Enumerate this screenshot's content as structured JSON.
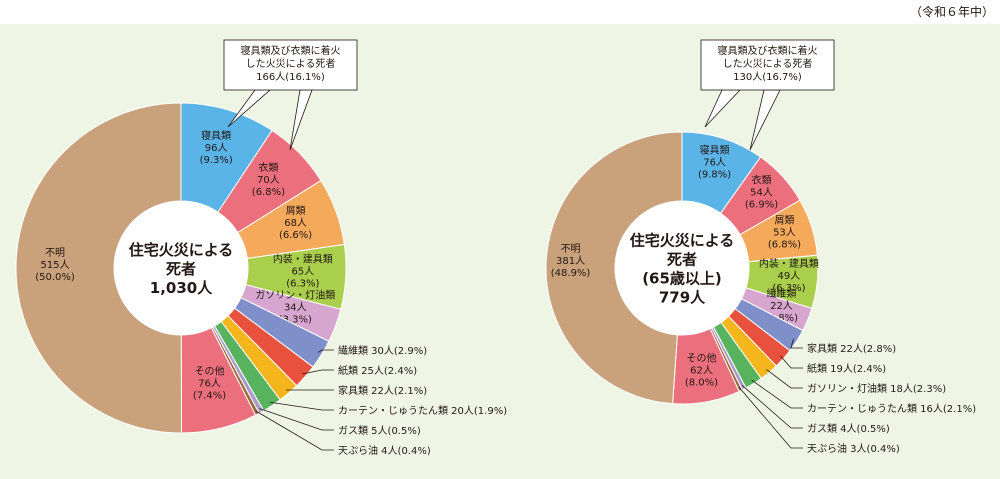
{
  "header": {
    "note": "（令和６年中）"
  },
  "colors": {
    "bedding": "#5bb4e8",
    "clothing": "#ec6f7e",
    "waste": "#f5a95b",
    "interior": "#a9cf4d",
    "gasoline": "#d7a6d0",
    "fiber": "#7f8fca",
    "paper": "#e8513d",
    "furniture": "#f4b51d",
    "curtain": "#58b35e",
    "gas": "#ab9bcc",
    "tempura": "#9c6b3c",
    "other": "#ec6f7e",
    "unknown": "#c9a27c",
    "background": "#eff5e4"
  },
  "chart_data": [
    {
      "type": "pie",
      "center_label": [
        "住宅火災による",
        "死者",
        "1,030人"
      ],
      "callout": [
        "寝具類及び衣類に着火",
        "した火災による死者",
        "166人(16.1%)"
      ],
      "slices": [
        {
          "key": "bedding",
          "color_key": "bedding",
          "name": "寝具類",
          "count": "96人",
          "pct": "(9.3%)",
          "value": 9.3,
          "label_pos": "inside"
        },
        {
          "key": "clothing",
          "color_key": "clothing",
          "name": "衣類",
          "count": "70人",
          "pct": "(6.8%)",
          "value": 6.8,
          "label_pos": "inside"
        },
        {
          "key": "waste",
          "color_key": "waste",
          "name": "屑類",
          "count": "68人",
          "pct": "(6.6%)",
          "value": 6.6,
          "label_pos": "inside"
        },
        {
          "key": "interior",
          "color_key": "interior",
          "name": "内装・建具類",
          "count": "65人",
          "pct": "(6.3%)",
          "value": 6.3,
          "label_pos": "inside"
        },
        {
          "key": "gasoline",
          "color_key": "gasoline",
          "name": "ガソリン・灯油類",
          "count": "34人",
          "pct": "(3.3%)",
          "value": 3.3,
          "label_pos": "inside"
        },
        {
          "key": "fiber",
          "color_key": "fiber",
          "name": "繊維類",
          "count": "30人",
          "pct": "(2.9%)",
          "value": 2.9,
          "label_pos": "outside"
        },
        {
          "key": "paper",
          "color_key": "paper",
          "name": "紙類",
          "count": "25人",
          "pct": "(2.4%)",
          "value": 2.4,
          "label_pos": "outside"
        },
        {
          "key": "furniture",
          "color_key": "furniture",
          "name": "家具類",
          "count": "22人",
          "pct": "(2.1%)",
          "value": 2.1,
          "label_pos": "outside"
        },
        {
          "key": "curtain",
          "color_key": "curtain",
          "name": "カーテン・じゅうたん類",
          "count": "20人",
          "pct": "(1.9%)",
          "value": 1.9,
          "label_pos": "outside"
        },
        {
          "key": "gas",
          "color_key": "gas",
          "name": "ガス類",
          "count": "5人",
          "pct": "(0.5%)",
          "value": 0.5,
          "label_pos": "outside"
        },
        {
          "key": "tempura",
          "color_key": "tempura",
          "name": "天ぷら油",
          "count": "4人",
          "pct": "(0.4%)",
          "value": 0.4,
          "label_pos": "outside"
        },
        {
          "key": "other",
          "color_key": "other",
          "name": "その他",
          "count": "76人",
          "pct": "(7.4%)",
          "value": 7.4,
          "label_pos": "inside"
        },
        {
          "key": "unknown",
          "color_key": "unknown",
          "name": "不明",
          "count": "515人",
          "pct": "(50.0%)",
          "value": 50.0,
          "label_pos": "inside"
        }
      ]
    },
    {
      "type": "pie",
      "center_label": [
        "住宅火災による",
        "死者",
        "(65歳以上)",
        "779人"
      ],
      "callout": [
        "寝具類及び衣類に着火",
        "した火災による死者",
        "130人(16.7%)"
      ],
      "slices": [
        {
          "key": "bedding",
          "color_key": "bedding",
          "name": "寝具類",
          "count": "76人",
          "pct": "(9.8%)",
          "value": 9.8,
          "label_pos": "inside"
        },
        {
          "key": "clothing",
          "color_key": "clothing",
          "name": "衣類",
          "count": "54人",
          "pct": "(6.9%)",
          "value": 6.9,
          "label_pos": "inside"
        },
        {
          "key": "waste",
          "color_key": "waste",
          "name": "屑類",
          "count": "53人",
          "pct": "(6.8%)",
          "value": 6.8,
          "label_pos": "inside"
        },
        {
          "key": "interior",
          "color_key": "interior",
          "name": "内装・建具類",
          "count": "49人",
          "pct": "(6.3%)",
          "value": 6.3,
          "label_pos": "inside"
        },
        {
          "key": "fiber",
          "color_key": "gasoline",
          "name": "繊維類",
          "count": "22人",
          "pct": "(2.8%)",
          "value": 2.8,
          "label_pos": "inside"
        },
        {
          "key": "furniture",
          "color_key": "fiber",
          "name": "家具類",
          "count": "22人",
          "pct": "(2.8%)",
          "value": 2.8,
          "label_pos": "outside"
        },
        {
          "key": "paper",
          "color_key": "paper",
          "name": "紙類",
          "count": "19人",
          "pct": "(2.4%)",
          "value": 2.4,
          "label_pos": "outside"
        },
        {
          "key": "gasoline",
          "color_key": "furniture",
          "name": "ガソリン・灯油類",
          "count": "18人",
          "pct": "(2.3%)",
          "value": 2.3,
          "label_pos": "outside"
        },
        {
          "key": "curtain",
          "color_key": "curtain",
          "name": "カーテン・じゅうたん類",
          "count": "16人",
          "pct": "(2.1%)",
          "value": 2.1,
          "label_pos": "outside"
        },
        {
          "key": "gas",
          "color_key": "gas",
          "name": "ガス類",
          "count": "4人",
          "pct": "(0.5%)",
          "value": 0.5,
          "label_pos": "outside"
        },
        {
          "key": "tempura",
          "color_key": "tempura",
          "name": "天ぷら油",
          "count": "3人",
          "pct": "(0.4%)",
          "value": 0.4,
          "label_pos": "outside"
        },
        {
          "key": "other",
          "color_key": "other",
          "name": "その他",
          "count": "62人",
          "pct": "(8.0%)",
          "value": 8.0,
          "label_pos": "inside"
        },
        {
          "key": "unknown",
          "color_key": "unknown",
          "name": "不明",
          "count": "381人",
          "pct": "(48.9%)",
          "value": 48.9,
          "label_pos": "inside"
        }
      ]
    }
  ]
}
